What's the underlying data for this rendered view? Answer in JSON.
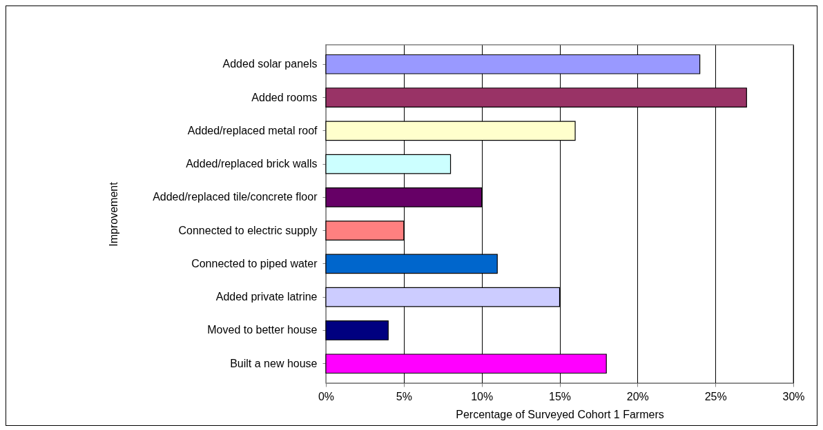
{
  "chart_data": {
    "type": "bar",
    "orientation": "horizontal",
    "xlabel": "Percentage of Surveyed Cohort 1 Farmers",
    "ylabel": "Improvement",
    "categories": [
      "Added solar panels",
      "Added rooms",
      "Added/replaced metal roof ",
      "Added/replaced brick walls",
      "Added/replaced tile/concrete floor",
      "Connected to electric supply",
      "Connected to piped water",
      "Added private latrine",
      "Moved to better house",
      "Built a new  house"
    ],
    "values": [
      24,
      27,
      16,
      8,
      10,
      5,
      11,
      15,
      4,
      18
    ],
    "colors": [
      "#9999ff",
      "#993366",
      "#ffffcc",
      "#ccffff",
      "#660066",
      "#ff8080",
      "#0066cc",
      "#ccccff",
      "#000080",
      "#ff00ff"
    ],
    "xlim": [
      0,
      30
    ],
    "xticks": [
      {
        "value": 0,
        "label": "0%"
      },
      {
        "value": 5,
        "label": "5%"
      },
      {
        "value": 10,
        "label": "10%"
      },
      {
        "value": 15,
        "label": "15%"
      },
      {
        "value": 20,
        "label": "20%"
      },
      {
        "value": 25,
        "label": "25%"
      },
      {
        "value": 30,
        "label": "30%"
      }
    ],
    "grid": "x",
    "legend": false
  }
}
